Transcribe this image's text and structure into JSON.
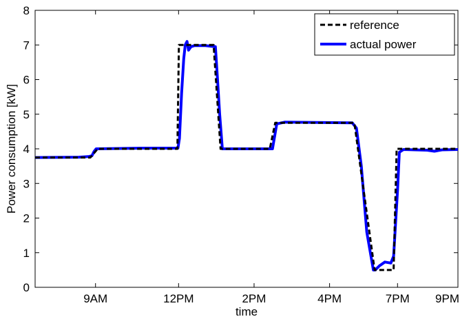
{
  "chart_data": {
    "type": "line",
    "title": "",
    "xlabel": "time",
    "ylabel": "Power consumption [kW]",
    "xlim": [
      7.0,
      21.0
    ],
    "ylim": [
      0,
      8
    ],
    "x_ticks": [
      {
        "value": 9.0,
        "label": "9AM"
      },
      {
        "value": 11.75,
        "label": "12PM"
      },
      {
        "value": 14.25,
        "label": "2PM"
      },
      {
        "value": 16.75,
        "label": "4PM"
      },
      {
        "value": 19.0,
        "label": "7PM"
      },
      {
        "value": 21.0,
        "label": "9PM"
      }
    ],
    "y_ticks": [
      0,
      1,
      2,
      3,
      4,
      5,
      6,
      7,
      8
    ],
    "grid": false,
    "legend_position": "top-right",
    "series": [
      {
        "name": "reference",
        "style": "dashed",
        "color": "#000000",
        "points": [
          [
            7.0,
            3.75
          ],
          [
            8.83,
            3.75
          ],
          [
            9.07,
            4.0
          ],
          [
            11.71,
            4.0
          ],
          [
            11.76,
            7.0
          ],
          [
            12.91,
            7.0
          ],
          [
            13.14,
            4.0
          ],
          [
            14.77,
            4.0
          ],
          [
            14.95,
            4.75
          ],
          [
            17.57,
            4.75
          ],
          [
            18.24,
            0.5
          ],
          [
            18.87,
            0.5
          ],
          [
            18.97,
            4.0
          ],
          [
            21.0,
            4.0
          ]
        ]
      },
      {
        "name": "actual power",
        "style": "solid",
        "color": "#0000ff",
        "points": [
          [
            7.0,
            3.75
          ],
          [
            8.45,
            3.76
          ],
          [
            8.79,
            3.78
          ],
          [
            8.88,
            3.8
          ],
          [
            8.95,
            3.92
          ],
          [
            9.02,
            4.0
          ],
          [
            10.58,
            4.02
          ],
          [
            11.73,
            4.02
          ],
          [
            11.78,
            4.3
          ],
          [
            11.85,
            5.6
          ],
          [
            11.92,
            6.6
          ],
          [
            11.97,
            7.0
          ],
          [
            12.03,
            7.1
          ],
          [
            12.08,
            6.85
          ],
          [
            12.16,
            6.95
          ],
          [
            12.27,
            6.98
          ],
          [
            12.64,
            6.98
          ],
          [
            12.97,
            6.95
          ],
          [
            13.04,
            6.0
          ],
          [
            13.11,
            5.0
          ],
          [
            13.2,
            4.0
          ],
          [
            14.86,
            4.0
          ],
          [
            15.0,
            4.72
          ],
          [
            15.26,
            4.77
          ],
          [
            17.5,
            4.75
          ],
          [
            17.64,
            4.6
          ],
          [
            17.8,
            3.5
          ],
          [
            17.98,
            1.6
          ],
          [
            18.2,
            0.5
          ],
          [
            18.26,
            0.5
          ],
          [
            18.4,
            0.62
          ],
          [
            18.58,
            0.73
          ],
          [
            18.78,
            0.7
          ],
          [
            18.87,
            0.9
          ],
          [
            19.0,
            2.8
          ],
          [
            19.06,
            3.9
          ],
          [
            19.2,
            3.98
          ],
          [
            19.98,
            3.96
          ],
          [
            20.22,
            3.93
          ],
          [
            20.47,
            3.97
          ],
          [
            21.0,
            3.98
          ]
        ]
      }
    ]
  }
}
